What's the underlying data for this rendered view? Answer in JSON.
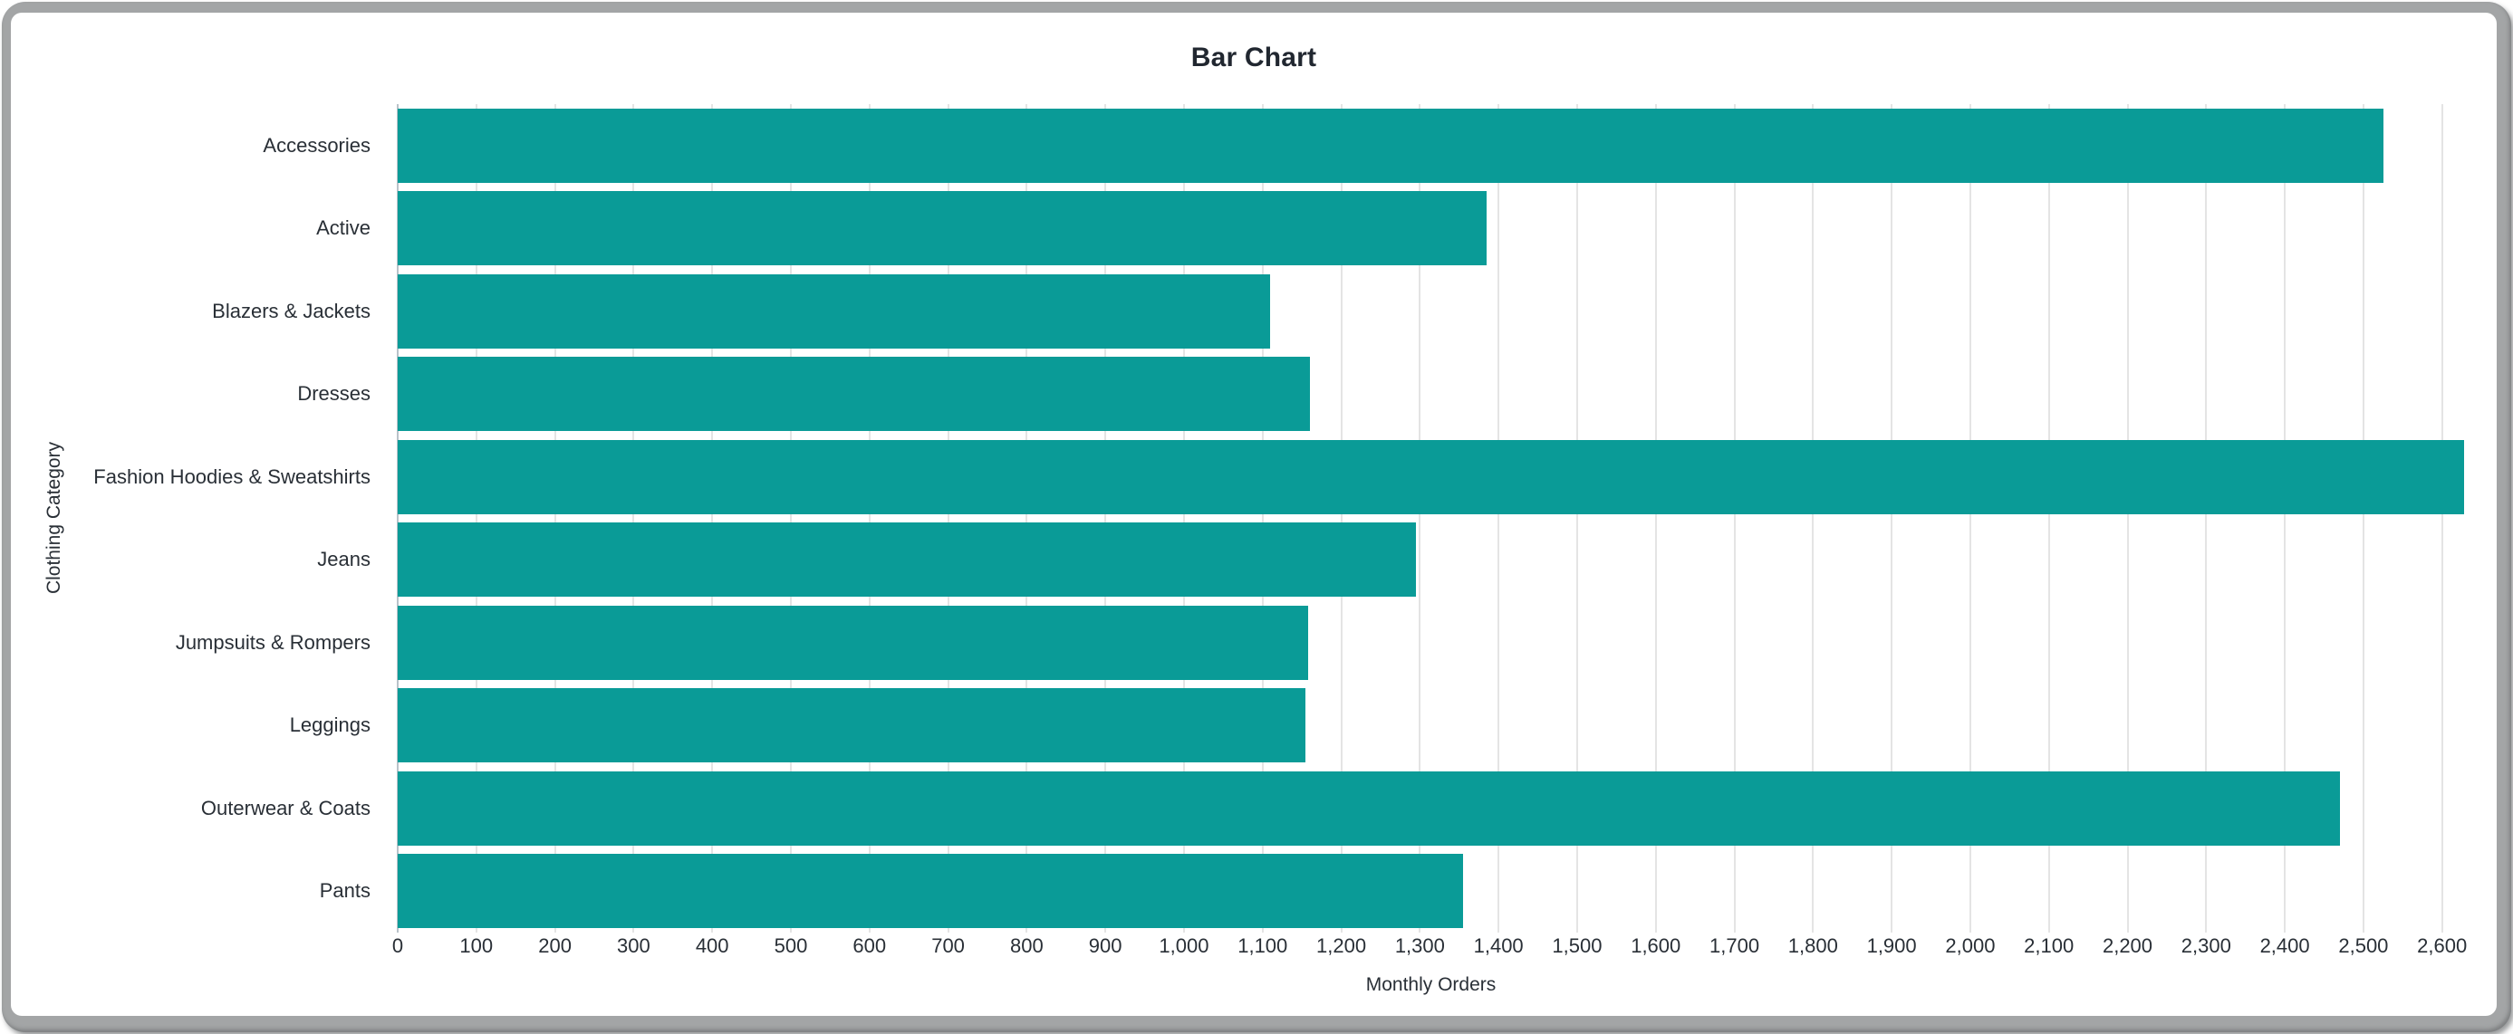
{
  "chart_data": {
    "type": "bar",
    "orientation": "horizontal",
    "title": "Bar Chart",
    "xlabel": "Monthly Orders",
    "ylabel": "Clothing Category",
    "categories": [
      "Accessories",
      "Active",
      "Blazers & Jackets",
      "Dresses",
      "Fashion Hoodies & Sweatshirts",
      "Jeans",
      "Jumpsuits & Rompers",
      "Leggings",
      "Outerwear & Coats",
      "Pants"
    ],
    "values": [
      2525,
      1385,
      1110,
      1160,
      2628,
      1295,
      1158,
      1155,
      2470,
      1355
    ],
    "xlim": [
      0,
      2628
    ],
    "x_tick_step": 100,
    "x_tick_labels": [
      "0",
      "100",
      "200",
      "300",
      "400",
      "500",
      "600",
      "700",
      "800",
      "900",
      "1,000",
      "1,100",
      "1,200",
      "1,300",
      "1,400",
      "1,500",
      "1,600",
      "1,700",
      "1,800",
      "1,900",
      "2,000",
      "2,100",
      "2,200",
      "2,300",
      "2,400",
      "2,500",
      "2,600"
    ],
    "grid": true,
    "legend": "none",
    "bar_color": "#0a9b97",
    "gridline_color": "#e4e4e4",
    "baseline_color": "#b9c2c9",
    "text_color": "#292f36",
    "frame_color": "#a3a5a6"
  }
}
